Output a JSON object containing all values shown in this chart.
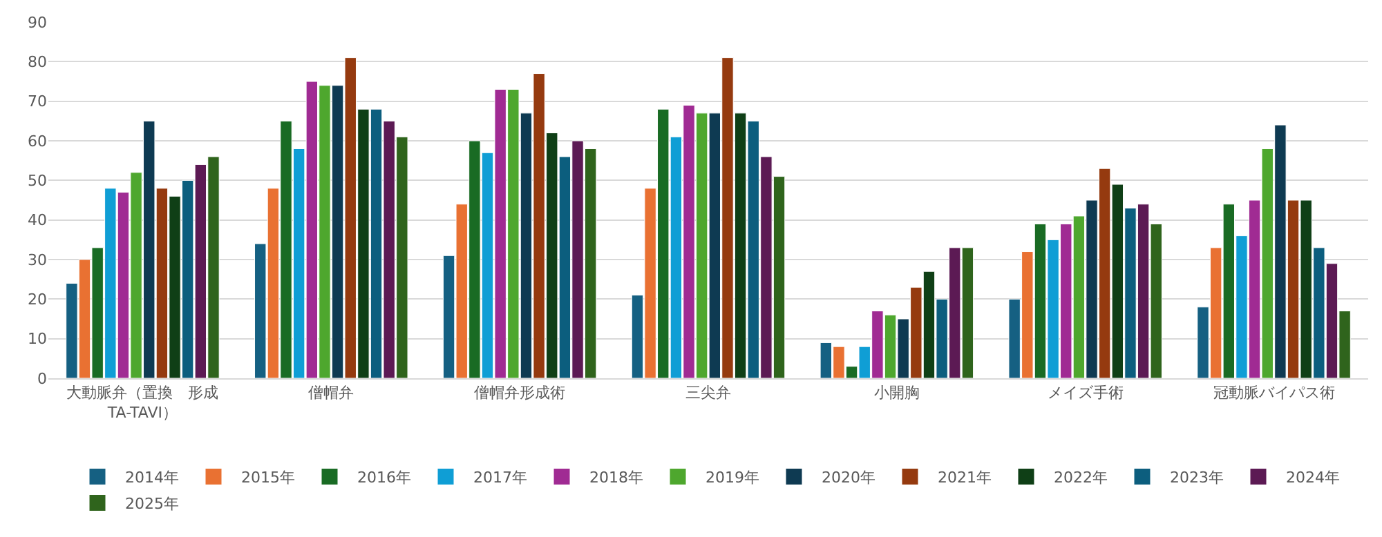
{
  "chart_data": {
    "type": "bar",
    "categories": [
      "大動脈弁（置換　形成\nTA-TAVI）",
      "僧帽弁",
      "僧帽弁形成術",
      "三尖弁",
      "小開胸",
      "メイズ手術",
      "冠動脈バイパス術"
    ],
    "ylim": [
      0,
      90
    ],
    "yticks": [
      0,
      10,
      20,
      30,
      40,
      50,
      60,
      70,
      80,
      90
    ],
    "grid": "y",
    "legend": "bottom",
    "series": [
      {
        "name": "2014年",
        "color": "#156082",
        "values": [
          24,
          34,
          31,
          21,
          9,
          20,
          18
        ]
      },
      {
        "name": "2015年",
        "color": "#e97132",
        "values": [
          30,
          48,
          44,
          48,
          8,
          32,
          33
        ]
      },
      {
        "name": "2016年",
        "color": "#196b24",
        "values": [
          33,
          65,
          60,
          68,
          3,
          39,
          44
        ]
      },
      {
        "name": "2017年",
        "color": "#0f9ed5",
        "values": [
          48,
          58,
          57,
          61,
          8,
          35,
          36
        ]
      },
      {
        "name": "2018年",
        "color": "#a02b93",
        "values": [
          47,
          75,
          73,
          69,
          17,
          39,
          45
        ]
      },
      {
        "name": "2019年",
        "color": "#4ea72e",
        "values": [
          52,
          74,
          73,
          67,
          16,
          41,
          58
        ]
      },
      {
        "name": "2020年",
        "color": "#0e3a52",
        "values": [
          65,
          74,
          67,
          67,
          15,
          45,
          64
        ]
      },
      {
        "name": "2021年",
        "color": "#953a0f",
        "values": [
          48,
          81,
          77,
          81,
          23,
          53,
          45
        ]
      },
      {
        "name": "2022年",
        "color": "#0f3f16",
        "values": [
          46,
          68,
          62,
          67,
          27,
          49,
          45
        ]
      },
      {
        "name": "2023年",
        "color": "#0c5e7e",
        "values": [
          50,
          68,
          56,
          65,
          20,
          43,
          33
        ]
      },
      {
        "name": "2024年",
        "color": "#5c1a54",
        "values": [
          54,
          65,
          60,
          56,
          33,
          44,
          29
        ]
      },
      {
        "name": "2025年",
        "color": "#2f641c",
        "values": [
          56,
          61,
          58,
          51,
          33,
          39,
          17
        ]
      }
    ]
  }
}
